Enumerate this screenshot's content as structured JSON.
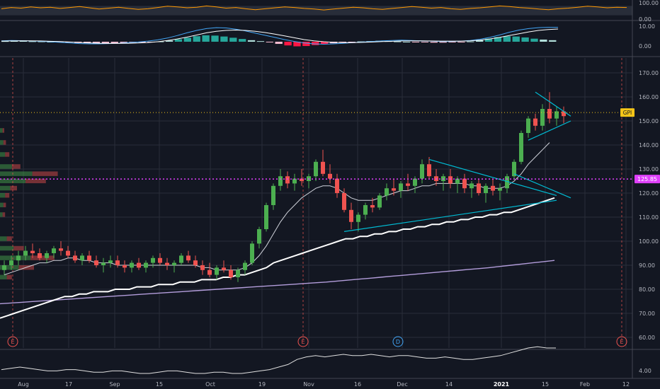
{
  "symbol_tag": "GPI",
  "price_tag": "125.85",
  "earnings_marker": "E",
  "dividend_marker": "D",
  "colors": {
    "background": "#131722",
    "grid": "#2a2e39",
    "up": "#26a69a",
    "candle_up": "#4caf50",
    "candle_down": "#ef5350",
    "sma_fast": "#d1d4dc",
    "sma_slow": "#ffffff",
    "sma_long": "#b39ddb",
    "trendline": "#00bcd4",
    "price_line": "#e040fb",
    "symbol_line": "#f5c518",
    "macd": "#42a5f5",
    "signal": "#ffffff",
    "oscillator": "#ff9800"
  },
  "chart_data": [
    {
      "type": "line",
      "role": "oscillator",
      "y_ticks": [
        "100.00",
        "0.00"
      ],
      "ylim": [
        0,
        100
      ],
      "values": [
        62,
        70,
        66,
        74,
        68,
        72,
        64,
        70,
        76,
        68,
        60,
        66,
        72,
        64,
        58,
        62,
        70,
        78,
        74,
        68,
        72,
        80,
        74,
        66,
        70,
        62,
        56,
        62,
        68,
        74,
        70,
        64,
        60,
        54,
        60,
        66,
        72,
        68,
        62,
        58,
        64,
        70,
        76,
        72,
        66,
        70,
        62,
        58,
        64,
        68,
        74,
        80,
        76,
        70,
        66,
        60,
        56,
        62,
        66,
        72,
        78,
        74,
        68,
        72,
        70
      ]
    },
    {
      "type": "bar",
      "role": "macd",
      "y_ticks": [
        "10.00",
        "0.00"
      ],
      "ylim": [
        -6,
        12
      ],
      "histogram": [
        0.4,
        0.6,
        0.5,
        0.3,
        0.2,
        0.0,
        -0.3,
        -0.5,
        -0.8,
        -1.0,
        -1.1,
        -1.2,
        -1.0,
        -0.8,
        -0.6,
        -0.4,
        -0.2,
        0.2,
        0.8,
        1.6,
        2.6,
        3.6,
        4.2,
        4.0,
        3.4,
        2.6,
        1.8,
        1.0,
        0.4,
        -0.4,
        -1.4,
        -2.4,
        -3.0,
        -2.8,
        -2.2,
        -1.6,
        -1.0,
        -0.6,
        -0.2,
        0.2,
        0.4,
        0.6,
        0.4,
        0.2,
        0.0,
        -0.2,
        -0.4,
        -0.6,
        -0.6,
        -0.4,
        -0.2,
        0.2,
        1.0,
        2.0,
        3.0,
        3.6,
        3.4,
        2.8,
        2.0,
        1.4,
        1.0
      ],
      "macd_line": [
        0.6,
        0.8,
        0.7,
        0.5,
        0.3,
        0.0,
        -0.4,
        -0.8,
        -1.2,
        -1.4,
        -1.4,
        -1.2,
        -1.0,
        -0.6,
        -0.2,
        0.4,
        1.2,
        2.4,
        4.0,
        5.8,
        7.4,
        8.6,
        9.2,
        9.0,
        8.2,
        7.0,
        5.6,
        4.2,
        2.8,
        1.4,
        0.2,
        -0.8,
        -1.4,
        -1.6,
        -1.4,
        -1.0,
        -0.6,
        -0.2,
        0.2,
        0.6,
        0.8,
        1.0,
        0.8,
        0.6,
        0.4,
        0.2,
        0.2,
        0.4,
        0.8,
        1.6,
        2.8,
        4.4,
        6.2,
        7.6,
        8.6,
        9.2,
        9.4,
        9.4
      ],
      "signal_line": [
        0.4,
        0.5,
        0.6,
        0.6,
        0.5,
        0.3,
        0.1,
        -0.2,
        -0.5,
        -0.8,
        -1.0,
        -1.1,
        -1.1,
        -1.0,
        -0.8,
        -0.5,
        0.0,
        0.8,
        1.8,
        3.0,
        4.4,
        5.8,
        6.8,
        7.4,
        7.6,
        7.4,
        6.8,
        6.0,
        5.0,
        3.8,
        2.6,
        1.4,
        0.6,
        0.0,
        -0.4,
        -0.6,
        -0.6,
        -0.4,
        -0.2,
        0.1,
        0.3,
        0.5,
        0.6,
        0.6,
        0.5,
        0.4,
        0.4,
        0.4,
        0.6,
        1.0,
        1.8,
        2.8,
        4.0,
        5.2,
        6.4,
        7.4,
        8.0,
        8.3
      ]
    },
    {
      "type": "candlestick",
      "role": "price",
      "symbol": "GPI",
      "y_ticks": [
        "170.00",
        "160.00",
        "150.00",
        "140.00",
        "130.00",
        "120.00",
        "110.00",
        "100.00",
        "90.00",
        "80.00",
        "70.00",
        "60.00"
      ],
      "ylim": [
        55,
        175
      ],
      "x_ticks": [
        "Aug",
        "17",
        "Sep",
        "15",
        "Oct",
        "19",
        "Nov",
        "16",
        "Dec",
        "14",
        "2021",
        "15",
        "Feb",
        "12"
      ],
      "candles": [
        [
          88,
          92,
          86,
          90
        ],
        [
          90,
          94,
          88,
          92
        ],
        [
          92,
          96,
          90,
          94
        ],
        [
          94,
          98,
          92,
          96
        ],
        [
          96,
          99,
          93,
          95
        ],
        [
          95,
          97,
          92,
          93
        ],
        [
          93,
          96,
          91,
          95
        ],
        [
          95,
          98,
          93,
          97
        ],
        [
          97,
          100,
          94,
          96
        ],
        [
          96,
          98,
          93,
          94
        ],
        [
          94,
          96,
          91,
          92
        ],
        [
          92,
          95,
          90,
          94
        ],
        [
          94,
          96,
          91,
          92
        ],
        [
          92,
          94,
          89,
          90
        ],
        [
          90,
          93,
          87,
          91
        ],
        [
          91,
          94,
          89,
          92
        ],
        [
          92,
          94,
          89,
          90
        ],
        [
          90,
          92,
          87,
          89
        ],
        [
          89,
          92,
          87,
          91
        ],
        [
          91,
          93,
          88,
          89
        ],
        [
          89,
          92,
          87,
          91
        ],
        [
          91,
          94,
          89,
          93
        ],
        [
          93,
          95,
          90,
          91
        ],
        [
          91,
          93,
          88,
          90
        ],
        [
          90,
          92,
          87,
          91
        ],
        [
          91,
          95,
          90,
          94
        ],
        [
          94,
          96,
          91,
          92
        ],
        [
          92,
          94,
          89,
          90
        ],
        [
          90,
          92,
          86,
          88
        ],
        [
          88,
          91,
          85,
          86
        ],
        [
          86,
          90,
          84,
          89
        ],
        [
          89,
          92,
          87,
          88
        ],
        [
          88,
          90,
          84,
          85
        ],
        [
          85,
          89,
          83,
          88
        ],
        [
          88,
          92,
          86,
          91
        ],
        [
          91,
          100,
          90,
          99
        ],
        [
          99,
          106,
          97,
          105
        ],
        [
          105,
          116,
          104,
          115
        ],
        [
          115,
          124,
          113,
          123
        ],
        [
          123,
          130,
          121,
          127
        ],
        [
          127,
          129,
          122,
          124
        ],
        [
          124,
          128,
          121,
          126
        ],
        [
          126,
          130,
          123,
          125
        ],
        [
          125,
          128,
          122,
          127
        ],
        [
          127,
          134,
          125,
          133
        ],
        [
          133,
          138,
          127,
          128
        ],
        [
          128,
          132,
          124,
          126
        ],
        [
          126,
          128,
          118,
          120
        ],
        [
          120,
          122,
          112,
          113
        ],
        [
          113,
          116,
          105,
          108
        ],
        [
          108,
          112,
          104,
          111
        ],
        [
          111,
          116,
          109,
          115
        ],
        [
          115,
          118,
          112,
          114
        ],
        [
          114,
          120,
          113,
          119
        ],
        [
          119,
          124,
          117,
          122
        ],
        [
          122,
          126,
          119,
          121
        ],
        [
          121,
          125,
          118,
          124
        ],
        [
          124,
          128,
          121,
          123
        ],
        [
          123,
          127,
          120,
          126
        ],
        [
          126,
          134,
          124,
          132
        ],
        [
          132,
          135,
          126,
          127
        ],
        [
          127,
          130,
          123,
          125
        ],
        [
          125,
          128,
          121,
          127
        ],
        [
          127,
          130,
          122,
          124
        ],
        [
          124,
          127,
          120,
          126
        ],
        [
          126,
          128,
          120,
          122
        ],
        [
          122,
          125,
          118,
          124
        ],
        [
          124,
          126,
          119,
          120
        ],
        [
          120,
          124,
          116,
          123
        ],
        [
          123,
          126,
          119,
          121
        ],
        [
          121,
          124,
          117,
          122
        ],
        [
          122,
          128,
          120,
          127
        ],
        [
          127,
          134,
          126,
          133
        ],
        [
          133,
          146,
          132,
          145
        ],
        [
          145,
          152,
          143,
          151
        ],
        [
          151,
          153,
          146,
          148
        ],
        [
          148,
          157,
          146,
          155
        ],
        [
          155,
          162,
          149,
          151
        ],
        [
          151,
          156,
          148,
          154
        ],
        [
          154,
          156,
          149,
          152
        ]
      ],
      "sma_fast": [
        86,
        87,
        88,
        89,
        90,
        91,
        91,
        92,
        92,
        93,
        93,
        92,
        92,
        91,
        91,
        91,
        90,
        90,
        90,
        90,
        90,
        90,
        90,
        90,
        90,
        90,
        90,
        90,
        89,
        89,
        88,
        88,
        88,
        88,
        89,
        91,
        94,
        98,
        103,
        108,
        112,
        115,
        118,
        120,
        122,
        123,
        123,
        122,
        120,
        118,
        117,
        117,
        117,
        118,
        119,
        120,
        121,
        121,
        122,
        123,
        123,
        124,
        124,
        124,
        124,
        124,
        123,
        123,
        122,
        122,
        122,
        123,
        125,
        128,
        132,
        135,
        138,
        141
      ],
      "sma_slow": [
        68,
        69,
        70,
        71,
        72,
        73,
        74,
        75,
        76,
        77,
        77,
        78,
        78,
        79,
        79,
        79,
        80,
        80,
        80,
        81,
        81,
        81,
        82,
        82,
        82,
        83,
        83,
        83,
        84,
        84,
        84,
        85,
        85,
        86,
        86,
        87,
        88,
        89,
        91,
        92,
        93,
        94,
        95,
        96,
        97,
        98,
        99,
        100,
        101,
        101,
        102,
        102,
        103,
        103,
        104,
        104,
        105,
        105,
        106,
        106,
        107,
        107,
        108,
        108,
        109,
        109,
        110,
        110,
        111,
        111,
        112,
        112,
        113,
        114,
        115,
        116,
        117,
        118
      ],
      "sma_long": [
        74,
        74.3,
        74.6,
        74.9,
        75.2,
        75.5,
        75.8,
        76.1,
        76.4,
        76.7,
        77,
        77.3,
        77.6,
        77.9,
        78.2,
        78.5,
        78.8,
        79.1,
        79.4,
        79.7,
        80,
        80.3,
        80.6,
        80.9,
        81.2,
        81.5,
        81.8,
        82.1,
        82.4,
        82.7,
        83,
        83.4,
        83.8,
        84.2,
        84.6,
        85,
        85.4,
        85.8,
        86.2,
        86.6,
        87,
        87.4,
        87.8,
        88.2,
        88.6,
        89,
        89.5,
        90,
        90.5,
        91,
        91.5,
        92
      ],
      "volume_profile": [
        {
          "price": 145,
          "up": 3,
          "down": 2
        },
        {
          "price": 140,
          "up": 4,
          "down": 3
        },
        {
          "price": 135,
          "up": 6,
          "down": 5
        },
        {
          "price": 130,
          "up": 14,
          "down": 10
        },
        {
          "price": 127,
          "up": 38,
          "down": 30
        },
        {
          "price": 124,
          "up": 30,
          "down": 24
        },
        {
          "price": 121,
          "up": 12,
          "down": 8
        },
        {
          "price": 118,
          "up": 6,
          "down": 5
        },
        {
          "price": 114,
          "up": 4,
          "down": 3
        },
        {
          "price": 110,
          "up": 3,
          "down": 3
        },
        {
          "price": 100,
          "up": 8,
          "down": 6
        },
        {
          "price": 96,
          "up": 16,
          "down": 12
        },
        {
          "price": 92,
          "up": 36,
          "down": 28
        },
        {
          "price": 88,
          "up": 22,
          "down": 18
        },
        {
          "price": 84,
          "up": 8,
          "down": 6
        }
      ],
      "trendlines": [
        {
          "label": "triangle",
          "points": [
            [
              48,
              104
            ],
            [
              78,
              117
            ]
          ]
        },
        {
          "label": "triangle",
          "points": [
            [
              60,
              134
            ],
            [
              78,
              119
            ]
          ]
        },
        {
          "label": "flag",
          "points": [
            [
              72,
              128
            ],
            [
              80,
              118
            ]
          ]
        },
        {
          "label": "pennant",
          "points": [
            [
              75,
              162
            ],
            [
              80,
              152
            ]
          ]
        },
        {
          "label": "pennant",
          "points": [
            [
              74,
              142
            ],
            [
              80,
              150
            ]
          ]
        }
      ],
      "horizontal_levels": [
        {
          "label": "GPI",
          "value": 153.5
        },
        {
          "label": "125.85",
          "value": 125.85
        }
      ]
    },
    {
      "type": "line",
      "role": "lower-indicator",
      "y_ticks": [
        "4.00"
      ],
      "values": [
        3.5,
        3.6,
        3.7,
        3.6,
        3.5,
        3.4,
        3.4,
        3.5,
        3.5,
        3.4,
        3.3,
        3.3,
        3.4,
        3.4,
        3.3,
        3.2,
        3.2,
        3.3,
        3.4,
        3.4,
        3.3,
        3.2,
        3.2,
        3.3,
        3.3,
        3.2,
        3.2,
        3.3,
        3.4,
        3.5,
        3.7,
        3.9,
        4.3,
        4.5,
        4.6,
        4.5,
        4.6,
        4.7,
        4.6,
        4.6,
        4.7,
        4.6,
        4.5,
        4.6,
        4.6,
        4.5,
        4.4,
        4.4,
        4.5,
        4.4,
        4.3,
        4.3,
        4.4,
        4.5,
        4.6,
        4.8,
        5.0,
        5.2,
        5.3,
        5.2,
        5.2
      ]
    }
  ]
}
